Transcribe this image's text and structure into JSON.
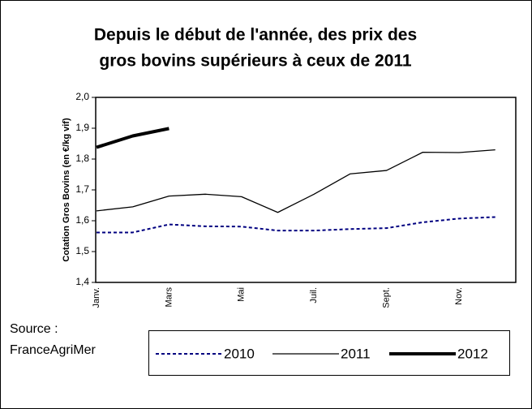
{
  "chart_data": {
    "type": "line",
    "title": "Depuis le début de l'année, des prix des gros bovins supérieurs à ceux de 2011",
    "title_lines": [
      "Depuis le début de l'année, des prix des",
      "gros bovins supérieurs à ceux de 2011"
    ],
    "y_label": "Cotation Gros Bovins (en €/kg vif)",
    "source_lines": [
      "Source :",
      "FranceAgriMer"
    ],
    "categories": [
      "Janv.",
      null,
      "Mars",
      null,
      "Mai",
      null,
      "Juil.",
      null,
      "Sept.",
      null,
      "Nov.",
      null
    ],
    "series": [
      {
        "name": "2010",
        "color": "#000080",
        "dash": true,
        "width": 2,
        "values": [
          1.562,
          1.562,
          1.588,
          1.582,
          1.581,
          1.568,
          1.568,
          1.573,
          1.576,
          1.595,
          1.607,
          1.612
        ]
      },
      {
        "name": "2011",
        "color": "#000000",
        "dash": false,
        "width": 1.3,
        "values": [
          1.632,
          1.645,
          1.68,
          1.686,
          1.678,
          1.627,
          1.686,
          1.752,
          1.763,
          1.822,
          1.821,
          1.83
        ]
      },
      {
        "name": "2012",
        "color": "#000000",
        "dash": false,
        "width": 4,
        "values": [
          1.838,
          1.875,
          1.899,
          null,
          null,
          null,
          null,
          null,
          null,
          null,
          null,
          null
        ]
      }
    ],
    "ylim": [
      1.4,
      2.0
    ],
    "yticks": [
      {
        "value": 1.4,
        "label": "1,4"
      },
      {
        "value": 1.5,
        "label": "1,5"
      },
      {
        "value": 1.6,
        "label": "1,6"
      },
      {
        "value": 1.7,
        "label": "1,7"
      },
      {
        "value": 1.8,
        "label": "1,8"
      },
      {
        "value": 1.9,
        "label": "1,9"
      },
      {
        "value": 2.0,
        "label": "2,0"
      }
    ],
    "grid": false
  }
}
